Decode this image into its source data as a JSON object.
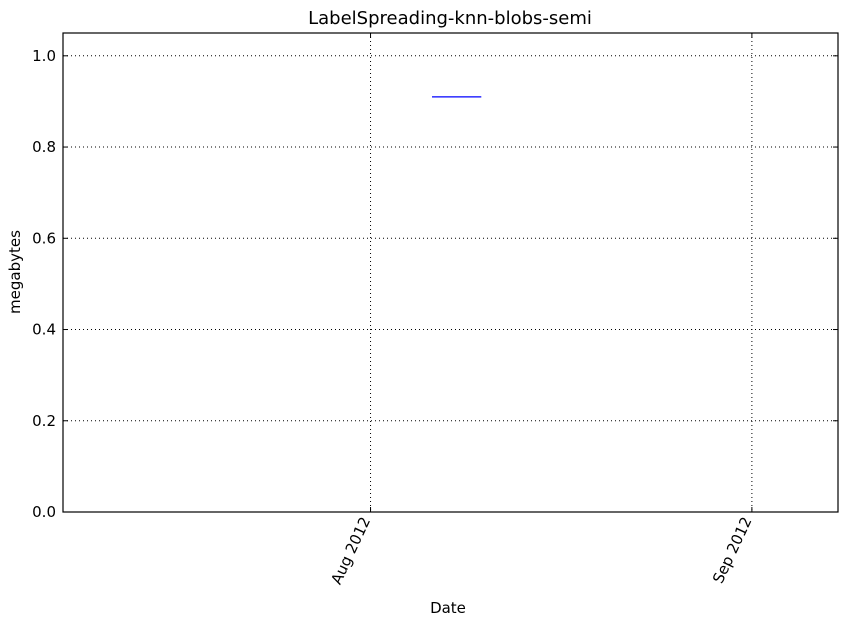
{
  "chart_data": {
    "type": "line",
    "title": "LabelSpreading-knn-blobs-semi",
    "xlabel": "Date",
    "ylabel": "megabytes",
    "x_axis": {
      "kind": "date",
      "range": [
        "2012-07-07",
        "2012-09-08"
      ],
      "ticks": [
        {
          "value": "2012-08-01",
          "label": "Aug 2012"
        },
        {
          "value": "2012-09-01",
          "label": "Sep 2012"
        }
      ]
    },
    "y_axis": {
      "range": [
        0,
        1.05
      ],
      "ticks": [
        {
          "value": 0.0,
          "label": "0.0"
        },
        {
          "value": 0.2,
          "label": "0.2"
        },
        {
          "value": 0.4,
          "label": "0.4"
        },
        {
          "value": 0.6,
          "label": "0.6"
        },
        {
          "value": 0.8,
          "label": "0.8"
        },
        {
          "value": 1.0,
          "label": "1.0"
        }
      ]
    },
    "grid": true,
    "series": [
      {
        "color": "#0000ff",
        "points": [
          {
            "x": "2012-08-06",
            "y": 0.91
          },
          {
            "x": "2012-08-10",
            "y": 0.91
          }
        ]
      }
    ]
  }
}
